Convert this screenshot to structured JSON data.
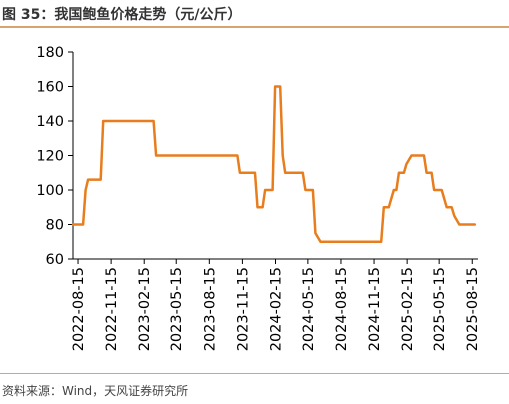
{
  "header": {
    "title": "图 35：我国鲍鱼价格走势（元/公斤）"
  },
  "footer": {
    "source": "资料来源：Wind，天风证券研究所"
  },
  "colors": {
    "line": "#e87d1e",
    "rule": "#d9a371",
    "axis": "#000000"
  },
  "chart_data": {
    "type": "line",
    "title": "",
    "xlabel": "",
    "ylabel": "",
    "ylim": [
      60,
      180
    ],
    "yticks": [
      60,
      80,
      100,
      120,
      140,
      160,
      180
    ],
    "xlim": [
      "2022-08-01",
      "2025-08-31"
    ],
    "xticks": [
      "2022-08-15",
      "2022-11-15",
      "2023-02-15",
      "2023-05-15",
      "2023-08-15",
      "2023-11-15",
      "2024-02-15",
      "2024-05-15",
      "2024-08-15",
      "2024-11-15",
      "2025-02-15",
      "2025-05-15",
      "2025-08-15"
    ],
    "grid": false,
    "legend": "none",
    "series": [
      {
        "x": [
          "2022-08-01",
          "2022-08-22",
          "2022-08-29",
          "2022-09-05",
          "2022-09-12",
          "2022-10-03",
          "2022-10-17",
          "2022-10-24",
          "2023-03-13",
          "2023-03-20",
          "2023-11-01",
          "2023-11-08",
          "2023-12-20",
          "2023-12-27",
          "2024-01-10",
          "2024-01-17",
          "2024-02-07",
          "2024-02-14",
          "2024-02-28",
          "2024-03-06",
          "2024-03-13",
          "2024-03-20",
          "2024-05-01",
          "2024-05-08",
          "2024-05-29",
          "2024-06-05",
          "2024-06-19",
          "2024-12-05",
          "2024-12-12",
          "2024-12-26",
          "2025-01-02",
          "2025-01-09",
          "2025-01-16",
          "2025-01-23",
          "2025-02-06",
          "2025-02-13",
          "2025-02-27",
          "2025-03-13",
          "2025-04-03",
          "2025-04-10",
          "2025-04-24",
          "2025-05-01",
          "2025-05-22",
          "2025-05-29",
          "2025-06-05",
          "2025-06-19",
          "2025-06-26",
          "2025-07-10",
          "2025-07-17",
          "2025-08-01",
          "2025-08-22"
        ],
        "values": [
          80,
          80,
          80,
          100,
          106,
          106,
          106,
          140,
          140,
          120,
          120,
          110,
          110,
          90,
          90,
          100,
          100,
          160,
          160,
          120,
          110,
          110,
          110,
          100,
          100,
          75,
          70,
          70,
          90,
          90,
          95,
          100,
          100,
          110,
          110,
          115,
          120,
          120,
          120,
          110,
          110,
          100,
          100,
          95,
          90,
          90,
          85,
          80,
          80,
          80,
          80
        ]
      }
    ]
  }
}
